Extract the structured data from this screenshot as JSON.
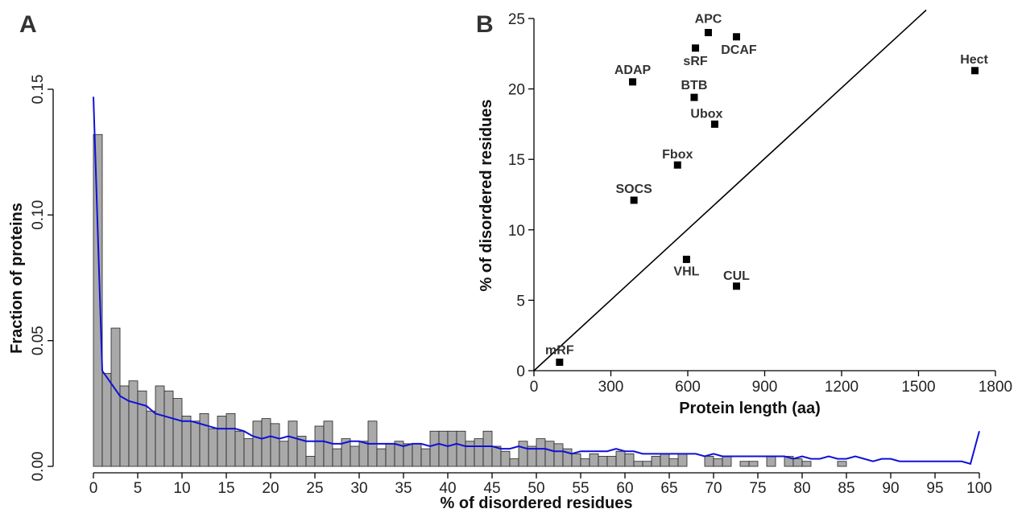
{
  "chart_data": [
    {
      "panel": "A",
      "type": "bar",
      "xlabel": "% of disordered residues",
      "ylabel": "Fraction of proteins",
      "xlim": [
        0,
        100
      ],
      "ylim": [
        0,
        0.15
      ],
      "xticks": [
        0,
        5,
        10,
        15,
        20,
        25,
        30,
        35,
        40,
        45,
        50,
        55,
        60,
        65,
        70,
        75,
        80,
        85,
        90,
        95,
        100
      ],
      "yticks": [
        0.0,
        0.05,
        0.1,
        0.15
      ],
      "ytick_labels": [
        "0.00",
        "0.05",
        "0.10",
        "0.15"
      ],
      "bar_width": 1,
      "bar_starts": [
        0,
        1,
        2,
        3,
        4,
        5,
        6,
        7,
        8,
        9,
        10,
        11,
        12,
        13,
        14,
        15,
        16,
        17,
        18,
        19,
        20,
        21,
        22,
        23,
        24,
        25,
        26,
        27,
        28,
        29,
        30,
        31,
        32,
        33,
        34,
        35,
        36,
        37,
        38,
        39,
        40,
        41,
        42,
        43,
        44,
        45,
        46,
        47,
        48,
        49,
        50,
        51,
        52,
        53,
        54,
        55,
        56,
        57,
        58,
        59,
        60,
        61,
        62,
        63,
        64,
        65,
        66,
        67,
        68,
        69,
        70,
        71,
        72,
        73,
        74,
        75,
        76,
        77,
        78,
        79,
        80,
        81,
        82,
        83,
        84,
        85,
        86,
        87,
        88,
        89,
        90,
        91,
        92,
        93,
        94,
        95,
        96,
        97,
        98,
        99
      ],
      "values": [
        0.132,
        0.037,
        0.055,
        0.032,
        0.034,
        0.03,
        0.022,
        0.032,
        0.03,
        0.027,
        0.02,
        0.018,
        0.021,
        0.015,
        0.02,
        0.021,
        0.014,
        0.011,
        0.018,
        0.019,
        0.017,
        0.01,
        0.018,
        0.012,
        0.004,
        0.016,
        0.018,
        0.007,
        0.011,
        0.008,
        0.01,
        0.018,
        0.007,
        0.009,
        0.01,
        0.009,
        0.009,
        0.007,
        0.014,
        0.014,
        0.014,
        0.014,
        0.01,
        0.011,
        0.014,
        0.008,
        0.006,
        0.003,
        0.01,
        0.008,
        0.011,
        0.01,
        0.009,
        0.007,
        0.005,
        0.003,
        0.005,
        0.004,
        0.004,
        0.006,
        0.005,
        0.002,
        0.002,
        0.004,
        0.005,
        0.003,
        0.005,
        0.0,
        0.0,
        0.004,
        0.003,
        0.004,
        0.0,
        0.002,
        0.002,
        0.0,
        0.004,
        0.0,
        0.004,
        0.003,
        0.002,
        0.0,
        0.0,
        0.0,
        0.002,
        0.0,
        0.0,
        0.0,
        0.0,
        0.0,
        0.0,
        0.0,
        0.0,
        0.0,
        0.0,
        0.0,
        0.0,
        0.0,
        0.0,
        0.0
      ],
      "line": {
        "x": [
          0,
          1,
          2,
          3,
          4,
          5,
          6,
          7,
          8,
          9,
          10,
          11,
          12,
          13,
          14,
          15,
          16,
          17,
          18,
          19,
          20,
          21,
          22,
          23,
          24,
          25,
          26,
          27,
          28,
          29,
          30,
          31,
          32,
          33,
          34,
          35,
          36,
          37,
          38,
          39,
          40,
          41,
          42,
          43,
          44,
          45,
          46,
          47,
          48,
          49,
          50,
          51,
          52,
          53,
          54,
          55,
          56,
          57,
          58,
          59,
          60,
          61,
          62,
          63,
          64,
          65,
          66,
          67,
          68,
          69,
          70,
          71,
          72,
          73,
          74,
          75,
          76,
          77,
          78,
          79,
          80,
          81,
          82,
          83,
          84,
          85,
          86,
          87,
          88,
          89,
          90,
          91,
          92,
          93,
          94,
          95,
          96,
          97,
          98,
          99,
          100
        ],
        "y": [
          0.147,
          0.038,
          0.033,
          0.028,
          0.026,
          0.025,
          0.024,
          0.021,
          0.02,
          0.019,
          0.018,
          0.018,
          0.017,
          0.016,
          0.015,
          0.015,
          0.015,
          0.014,
          0.012,
          0.011,
          0.012,
          0.011,
          0.012,
          0.011,
          0.01,
          0.01,
          0.01,
          0.009,
          0.009,
          0.01,
          0.01,
          0.009,
          0.009,
          0.009,
          0.009,
          0.008,
          0.009,
          0.009,
          0.008,
          0.009,
          0.008,
          0.009,
          0.008,
          0.008,
          0.008,
          0.008,
          0.007,
          0.007,
          0.008,
          0.007,
          0.007,
          0.007,
          0.006,
          0.006,
          0.005,
          0.006,
          0.006,
          0.006,
          0.006,
          0.007,
          0.006,
          0.006,
          0.005,
          0.005,
          0.005,
          0.005,
          0.005,
          0.005,
          0.005,
          0.004,
          0.005,
          0.004,
          0.004,
          0.004,
          0.004,
          0.004,
          0.004,
          0.004,
          0.004,
          0.003,
          0.004,
          0.003,
          0.003,
          0.004,
          0.003,
          0.003,
          0.004,
          0.003,
          0.002,
          0.003,
          0.003,
          0.002,
          0.002,
          0.002,
          0.002,
          0.002,
          0.002,
          0.002,
          0.002,
          0.001,
          0.014
        ]
      }
    },
    {
      "panel": "B",
      "type": "scatter",
      "xlabel": "Protein length (aa)",
      "ylabel": "% of disordered residues",
      "xlim": [
        0,
        1800
      ],
      "ylim": [
        0,
        25
      ],
      "xticks": [
        0,
        300,
        600,
        900,
        1200,
        1500,
        1800
      ],
      "yticks": [
        0,
        5,
        10,
        15,
        20,
        25
      ],
      "points": [
        {
          "label": "APC",
          "x": 680,
          "y": 24.0
        },
        {
          "label": "DCAF",
          "x": 790,
          "y": 23.7
        },
        {
          "label": "sRF",
          "x": 630,
          "y": 22.9
        },
        {
          "label": "Hect",
          "x": 1720,
          "y": 21.3
        },
        {
          "label": "ADAP",
          "x": 385,
          "y": 20.5
        },
        {
          "label": "BTB",
          "x": 625,
          "y": 19.4
        },
        {
          "label": "Ubox",
          "x": 705,
          "y": 17.5
        },
        {
          "label": "Fbox",
          "x": 560,
          "y": 14.6
        },
        {
          "label": "SOCS",
          "x": 390,
          "y": 12.1
        },
        {
          "label": "VHL",
          "x": 595,
          "y": 7.9
        },
        {
          "label": "CUL",
          "x": 790,
          "y": 6.0
        },
        {
          "label": "mRF",
          "x": 100,
          "y": 0.6
        }
      ],
      "reference_line": {
        "x": [
          0,
          1530
        ],
        "y": [
          0,
          25.6
        ]
      }
    }
  ]
}
